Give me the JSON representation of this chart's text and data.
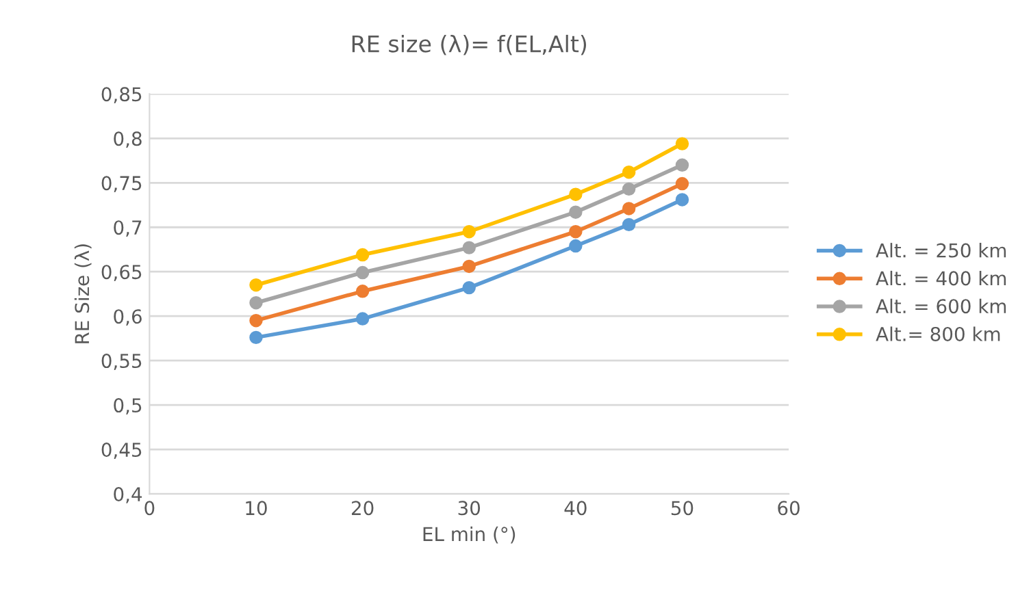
{
  "chart_data": {
    "type": "line",
    "title": "RE size (λ)= f(EL,Alt)",
    "xlabel": "EL min (°)",
    "ylabel": "RE Size (λ)",
    "x": [
      10,
      20,
      30,
      40,
      45,
      50
    ],
    "series": [
      {
        "name": "Alt. = 250 km",
        "color": "#5b9bd5",
        "values": [
          0.576,
          0.597,
          0.632,
          0.679,
          0.703,
          0.731
        ]
      },
      {
        "name": "Alt. = 400 km",
        "color": "#ed7d31",
        "values": [
          0.595,
          0.628,
          0.656,
          0.695,
          0.721,
          0.749
        ]
      },
      {
        "name": "Alt. = 600 km",
        "color": "#a5a5a5",
        "values": [
          0.615,
          0.649,
          0.677,
          0.717,
          0.743,
          0.77
        ]
      },
      {
        "name": "Alt.= 800 km",
        "color": "#ffc000",
        "values": [
          0.635,
          0.669,
          0.695,
          0.737,
          0.762,
          0.794
        ]
      }
    ],
    "xlim": [
      0,
      60
    ],
    "xticks": [
      0,
      10,
      20,
      30,
      40,
      50,
      60
    ],
    "ylim": [
      0.4,
      0.85
    ],
    "yticks": [
      {
        "value": 0.4,
        "label": "0,4"
      },
      {
        "value": 0.45,
        "label": "0,45"
      },
      {
        "value": 0.5,
        "label": "0,5"
      },
      {
        "value": 0.55,
        "label": "0,55"
      },
      {
        "value": 0.6,
        "label": "0,6"
      },
      {
        "value": 0.65,
        "label": "0,65"
      },
      {
        "value": 0.7,
        "label": "0,7"
      },
      {
        "value": 0.75,
        "label": "0,75"
      },
      {
        "value": 0.8,
        "label": "0,8"
      },
      {
        "value": 0.85,
        "label": "0,85"
      }
    ],
    "grid": "y",
    "legend": "right",
    "marker": "circle",
    "line_style": "solid"
  }
}
